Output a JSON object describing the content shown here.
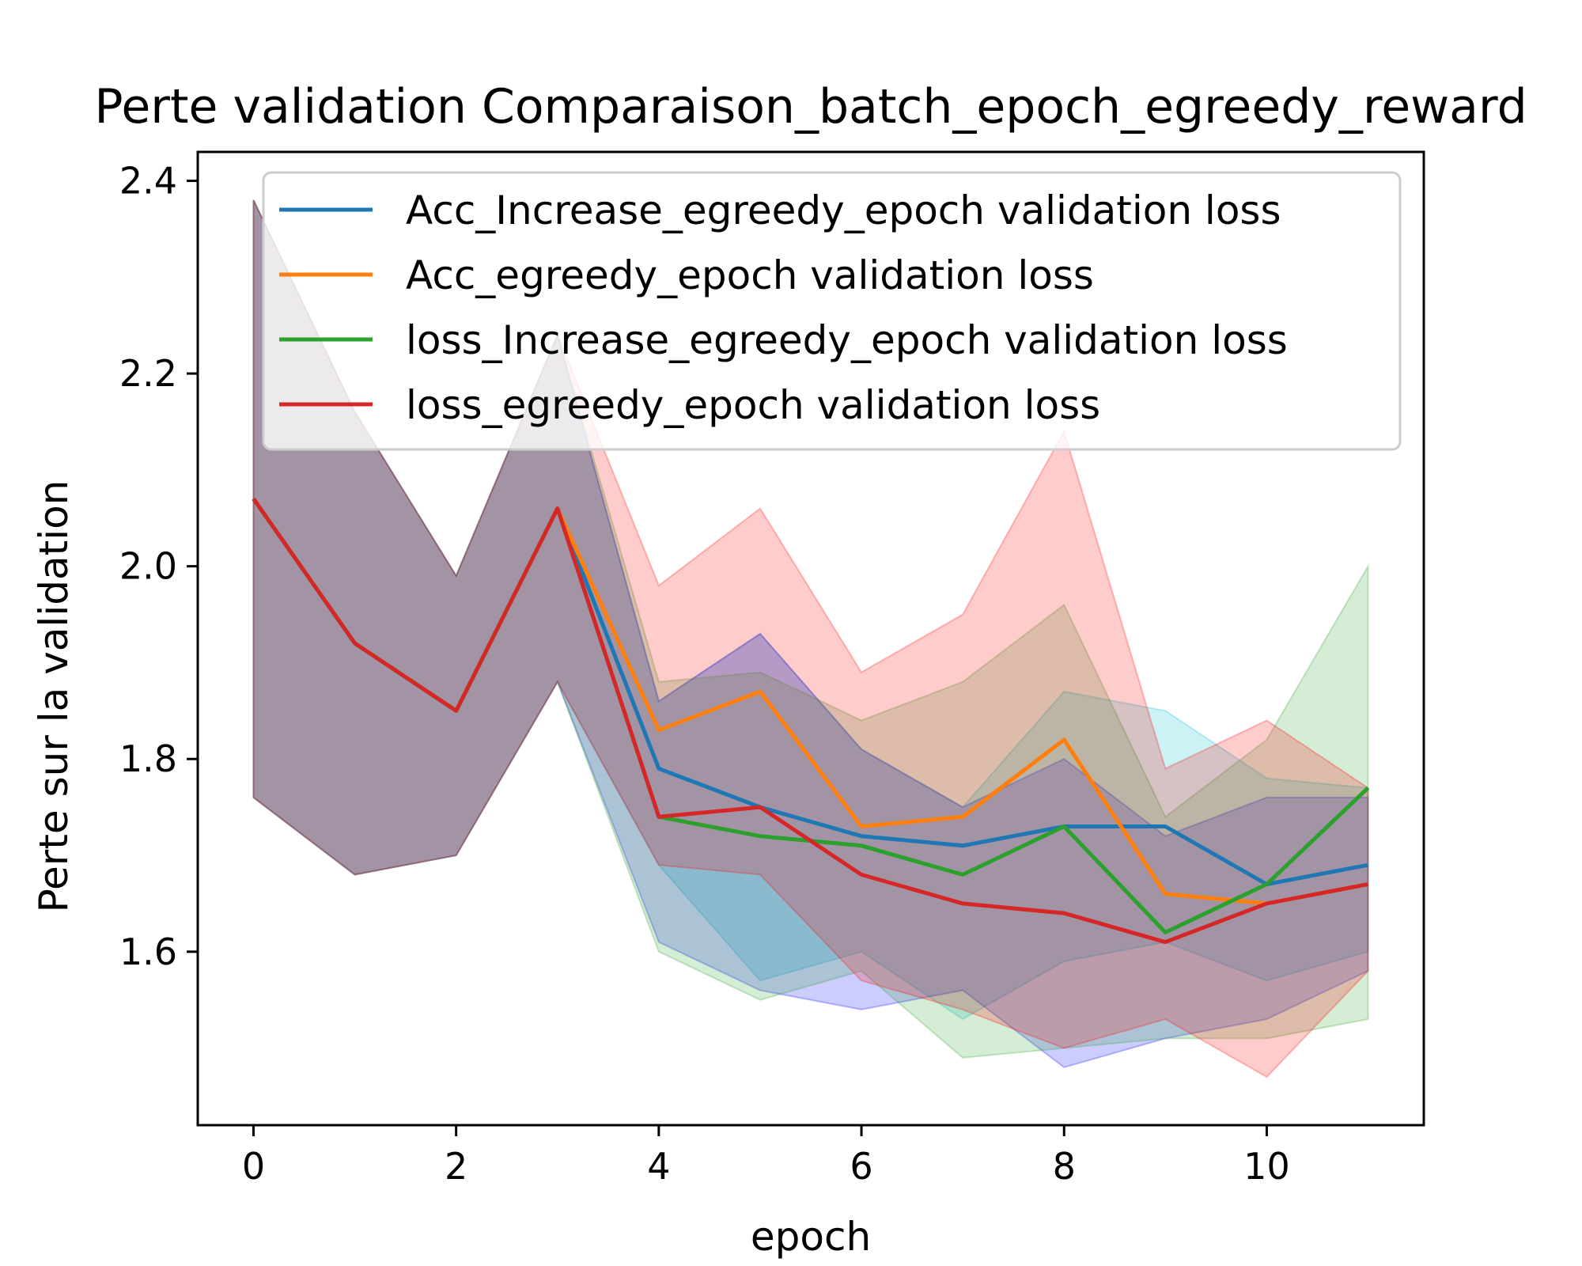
{
  "chart_data": {
    "type": "line",
    "title": "Perte validation Comparaison_batch_epoch_egreedy_reward",
    "xlabel": "epoch",
    "ylabel": "Perte sur la validation",
    "xlim": [
      -0.55,
      11.55
    ],
    "ylim": [
      1.42,
      2.43
    ],
    "xticks": [
      "0",
      "2",
      "4",
      "6",
      "8",
      "10"
    ],
    "yticks": [
      "1.6",
      "1.8",
      "2.0",
      "2.2",
      "2.4"
    ],
    "legend_position": "upper right",
    "grid": false,
    "x": [
      0,
      1,
      2,
      3,
      4,
      5,
      6,
      7,
      8,
      9,
      10,
      11
    ],
    "series": [
      {
        "name": "Acc_Increase_egreedy_epoch validation loss",
        "color": "#1f77b4",
        "band_color": "#00bcd4",
        "values": [
          2.07,
          1.92,
          1.85,
          2.06,
          1.79,
          1.75,
          1.72,
          1.71,
          1.73,
          1.73,
          1.67,
          1.69
        ],
        "upper": [
          2.38,
          2.16,
          1.99,
          2.24,
          1.86,
          1.93,
          1.81,
          1.75,
          1.87,
          1.85,
          1.78,
          1.77
        ],
        "lower": [
          1.76,
          1.68,
          1.7,
          1.88,
          1.69,
          1.57,
          1.6,
          1.53,
          1.59,
          1.61,
          1.57,
          1.6
        ]
      },
      {
        "name": "Acc_egreedy_epoch validation loss",
        "color": "#ff7f0e",
        "band_color": "#0000ff",
        "values": [
          2.07,
          1.92,
          1.85,
          2.06,
          1.83,
          1.87,
          1.73,
          1.74,
          1.82,
          1.66,
          1.65,
          1.67
        ],
        "upper": [
          2.38,
          2.16,
          1.99,
          2.24,
          1.86,
          1.93,
          1.81,
          1.75,
          1.8,
          1.72,
          1.76,
          1.76
        ],
        "lower": [
          1.76,
          1.68,
          1.7,
          1.88,
          1.61,
          1.56,
          1.54,
          1.56,
          1.48,
          1.51,
          1.53,
          1.58
        ]
      },
      {
        "name": "loss_Increase_egreedy_epoch validation loss",
        "color": "#2ca02c",
        "band_color": "#2ca02c",
        "values": [
          2.07,
          1.92,
          1.85,
          2.06,
          1.74,
          1.72,
          1.71,
          1.68,
          1.73,
          1.62,
          1.67,
          1.77
        ],
        "upper": [
          2.38,
          2.16,
          1.99,
          2.24,
          1.88,
          1.89,
          1.84,
          1.88,
          1.96,
          1.74,
          1.82,
          2.0
        ],
        "lower": [
          1.76,
          1.68,
          1.7,
          1.88,
          1.6,
          1.55,
          1.58,
          1.49,
          1.5,
          1.51,
          1.51,
          1.53
        ]
      },
      {
        "name": "loss_egreedy_epoch validation loss",
        "color": "#d62728",
        "band_color": "#ff0000",
        "values": [
          2.07,
          1.92,
          1.85,
          2.06,
          1.74,
          1.75,
          1.68,
          1.65,
          1.64,
          1.61,
          1.65,
          1.67
        ],
        "upper": [
          2.38,
          2.16,
          1.99,
          2.24,
          1.98,
          2.06,
          1.89,
          1.95,
          2.14,
          1.79,
          1.84,
          1.77
        ],
        "lower": [
          1.76,
          1.68,
          1.7,
          1.88,
          1.69,
          1.68,
          1.57,
          1.54,
          1.5,
          1.53,
          1.47,
          1.58
        ]
      }
    ]
  }
}
